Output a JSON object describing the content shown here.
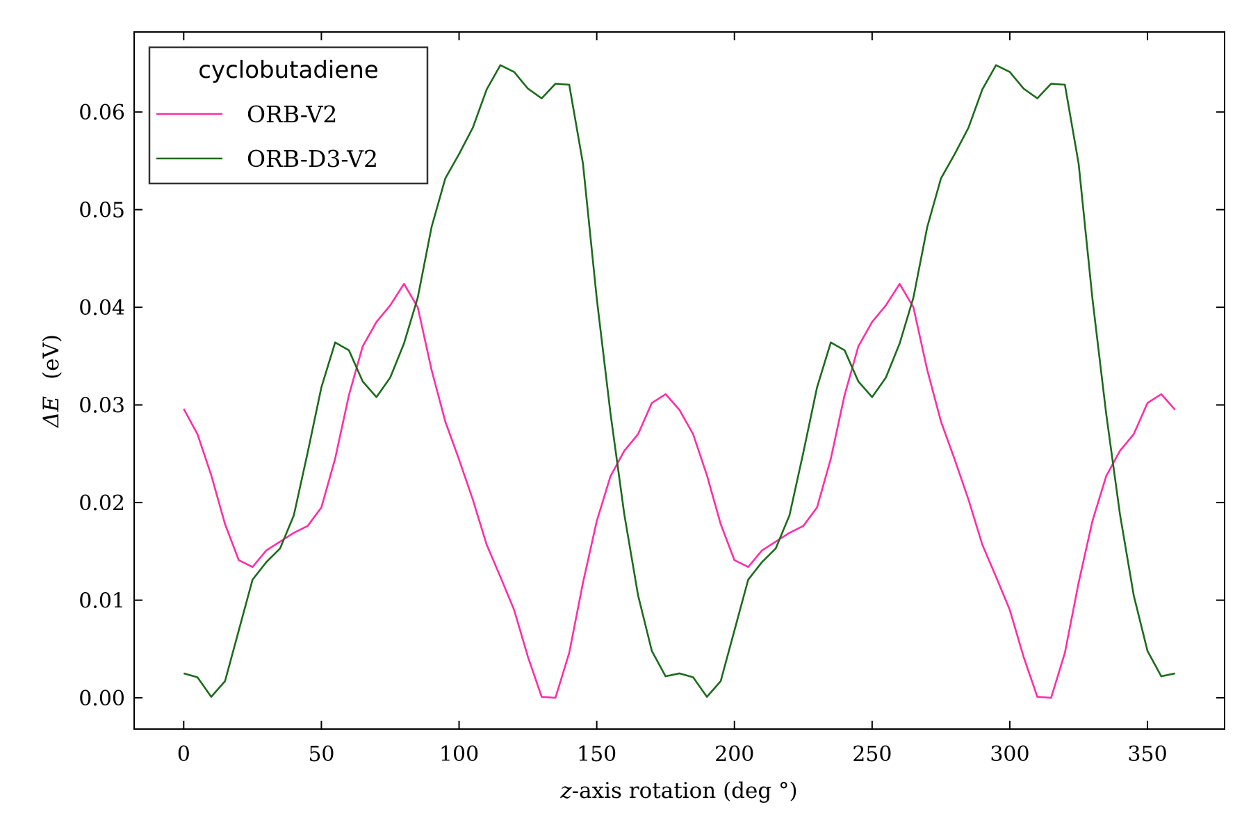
{
  "chart_data": {
    "type": "line",
    "xlabel_var": "z",
    "xlabel_rest": "-axis rotation (deg °)",
    "ylabel_main": "ΔE",
    "ylabel_unit": "(eV)",
    "xlim": [
      -18,
      378
    ],
    "ylim": [
      -0.0032,
      0.0682
    ],
    "xticks": [
      0,
      50,
      100,
      150,
      200,
      250,
      300,
      350
    ],
    "yticks": [
      0.0,
      0.01,
      0.02,
      0.03,
      0.04,
      0.05,
      0.06
    ],
    "ytick_labels": [
      "0.00",
      "0.01",
      "0.02",
      "0.03",
      "0.04",
      "0.05",
      "0.06"
    ],
    "legend": {
      "title": "cyclobutadiene",
      "position": "upper-left"
    },
    "x": [
      0,
      5,
      10,
      15,
      20,
      25,
      30,
      35,
      40,
      45,
      50,
      55,
      60,
      65,
      70,
      75,
      80,
      85,
      90,
      95,
      100,
      105,
      110,
      115,
      120,
      125,
      130,
      135,
      140,
      145,
      150,
      155,
      160,
      165,
      170,
      175,
      180,
      185,
      190,
      195,
      200,
      205,
      210,
      215,
      220,
      225,
      230,
      235,
      240,
      245,
      250,
      255,
      260,
      265,
      270,
      275,
      280,
      285,
      290,
      295,
      300,
      305,
      310,
      315,
      320,
      325,
      330,
      335,
      340,
      345,
      350,
      355,
      360
    ],
    "series": [
      {
        "name": "ORB-V2",
        "color": "#ff2da6",
        "values": [
          0.0296,
          0.027,
          0.0228,
          0.0178,
          0.0141,
          0.0134,
          0.0151,
          0.016,
          0.0169,
          0.0176,
          0.0195,
          0.0245,
          0.031,
          0.036,
          0.0385,
          0.0402,
          0.0424,
          0.04,
          0.0336,
          0.0283,
          0.0244,
          0.0203,
          0.0157,
          0.0124,
          0.009,
          0.0042,
          0.0001,
          0.0,
          0.0046,
          0.0118,
          0.0181,
          0.0227,
          0.0253,
          0.027,
          0.0302,
          0.0311,
          0.0295,
          0.027,
          0.0228,
          0.0178,
          0.0141,
          0.0134,
          0.0151,
          0.016,
          0.0169,
          0.0176,
          0.0195,
          0.0245,
          0.031,
          0.036,
          0.0385,
          0.0402,
          0.0424,
          0.04,
          0.0336,
          0.0283,
          0.0244,
          0.0203,
          0.0157,
          0.0124,
          0.009,
          0.0042,
          0.0001,
          0.0,
          0.0046,
          0.0118,
          0.0181,
          0.0227,
          0.0253,
          0.027,
          0.0302,
          0.0311,
          0.0295
        ]
      },
      {
        "name": "ORB-D3-V2",
        "color": "#1a6b1a",
        "values": [
          0.0025,
          0.0021,
          0.0001,
          0.0017,
          0.0069,
          0.0121,
          0.0139,
          0.0153,
          0.0187,
          0.0251,
          0.0318,
          0.0364,
          0.0356,
          0.0324,
          0.0308,
          0.0328,
          0.0363,
          0.041,
          0.0482,
          0.0532,
          0.0557,
          0.0584,
          0.0623,
          0.0648,
          0.0641,
          0.0624,
          0.0614,
          0.0629,
          0.0628,
          0.0547,
          0.0409,
          0.0291,
          0.0188,
          0.0105,
          0.0048,
          0.0022,
          0.0025,
          0.0021,
          0.0001,
          0.0017,
          0.0069,
          0.0121,
          0.0139,
          0.0153,
          0.0187,
          0.0251,
          0.0318,
          0.0364,
          0.0356,
          0.0324,
          0.0308,
          0.0328,
          0.0363,
          0.041,
          0.0482,
          0.0532,
          0.0557,
          0.0584,
          0.0623,
          0.0648,
          0.0641,
          0.0624,
          0.0614,
          0.0629,
          0.0628,
          0.0547,
          0.0409,
          0.0291,
          0.0188,
          0.0105,
          0.0048,
          0.0022,
          0.0025
        ]
      }
    ]
  }
}
